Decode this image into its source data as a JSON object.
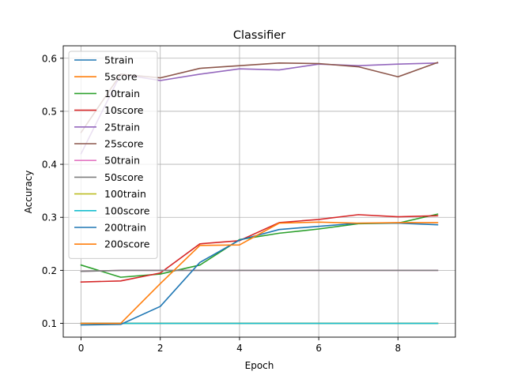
{
  "chart_data": {
    "type": "line",
    "title": "Classifier",
    "xlabel": "Epoch",
    "ylabel": "Accuracy",
    "xlim": [
      -0.45,
      9.45
    ],
    "ylim": [
      0.074,
      0.6235
    ],
    "grid": true,
    "legend": "upper-left",
    "xticks": [
      0,
      2,
      4,
      6,
      8
    ],
    "xtick_labels": [
      "0",
      "2",
      "4",
      "6",
      "8"
    ],
    "yticks": [
      0.1,
      0.2,
      0.3,
      0.4,
      0.5,
      0.6
    ],
    "ytick_labels": [
      "0.1",
      "0.2",
      "0.3",
      "0.4",
      "0.5",
      "0.6"
    ],
    "x": [
      0,
      1,
      2,
      3,
      4,
      5,
      6,
      7,
      8,
      9
    ],
    "series": [
      {
        "name": "5train",
        "color": "#1f77b4",
        "values": [
          0.1,
          0.1,
          0.1,
          0.1,
          0.1,
          0.1,
          0.1,
          0.1,
          0.1,
          0.1
        ]
      },
      {
        "name": "5score",
        "color": "#ff7f0e",
        "values": [
          0.1,
          0.1,
          0.1,
          0.1,
          0.1,
          0.1,
          0.1,
          0.1,
          0.1,
          0.1
        ]
      },
      {
        "name": "10train",
        "color": "#2ca02c",
        "values": [
          0.21,
          0.187,
          0.193,
          0.21,
          0.258,
          0.27,
          0.278,
          0.288,
          0.289,
          0.306
        ]
      },
      {
        "name": "10score",
        "color": "#d62728",
        "values": [
          0.178,
          0.18,
          0.195,
          0.25,
          0.256,
          0.29,
          0.296,
          0.305,
          0.301,
          0.303
        ]
      },
      {
        "name": "25train",
        "color": "#9467bd",
        "values": [
          0.42,
          0.57,
          0.558,
          0.57,
          0.58,
          0.578,
          0.589,
          0.586,
          0.589,
          0.591
        ]
      },
      {
        "name": "25score",
        "color": "#8c564b",
        "values": [
          0.46,
          0.57,
          0.563,
          0.581,
          0.586,
          0.591,
          0.59,
          0.584,
          0.565,
          0.592
        ]
      },
      {
        "name": "50train",
        "color": "#e377c2",
        "values": [
          0.198,
          0.2,
          0.2,
          0.2,
          0.2,
          0.2,
          0.2,
          0.2,
          0.2,
          0.2
        ]
      },
      {
        "name": "50score",
        "color": "#7f7f7f",
        "values": [
          0.198,
          0.2,
          0.2,
          0.2,
          0.2,
          0.2,
          0.2,
          0.2,
          0.2,
          0.2
        ]
      },
      {
        "name": "100train",
        "color": "#bcbd22",
        "values": [
          0.1,
          0.1,
          0.1,
          0.1,
          0.1,
          0.1,
          0.1,
          0.1,
          0.1,
          0.1
        ]
      },
      {
        "name": "100score",
        "color": "#17becf",
        "values": [
          0.1,
          0.1,
          0.1,
          0.1,
          0.1,
          0.1,
          0.1,
          0.1,
          0.1,
          0.1
        ]
      },
      {
        "name": "200train",
        "color": "#1f77b4",
        "values": [
          0.097,
          0.098,
          0.132,
          0.215,
          0.257,
          0.277,
          0.283,
          0.289,
          0.289,
          0.286
        ]
      },
      {
        "name": "200score",
        "color": "#ff7f0e",
        "values": [
          0.1,
          0.1,
          0.175,
          0.247,
          0.248,
          0.289,
          0.291,
          0.289,
          0.29,
          0.29
        ]
      }
    ]
  }
}
